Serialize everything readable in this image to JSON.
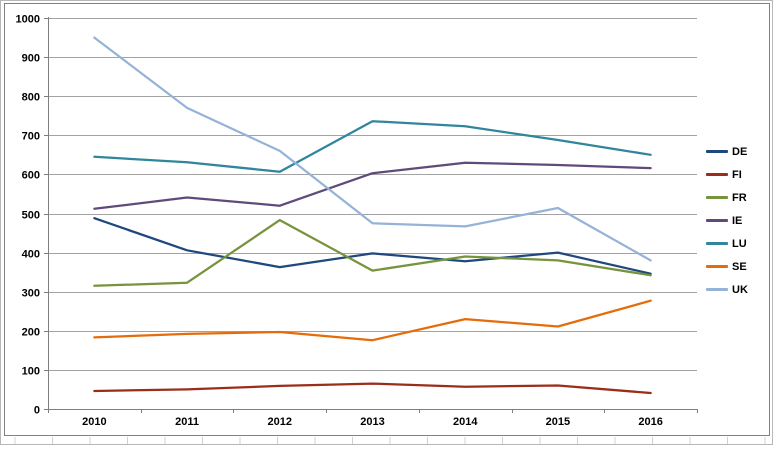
{
  "chart_data": {
    "type": "line",
    "title": "",
    "xlabel": "",
    "ylabel": "",
    "categories": [
      "2010",
      "2011",
      "2012",
      "2013",
      "2014",
      "2015",
      "2016"
    ],
    "series": [
      {
        "name": "DE",
        "color": "#1F497D",
        "values": [
          488,
          406,
          363,
          398,
          378,
          400,
          346
        ]
      },
      {
        "name": "FI",
        "color": "#9B2D1B",
        "values": [
          46,
          50,
          59,
          65,
          57,
          60,
          41
        ]
      },
      {
        "name": "FR",
        "color": "#77933C",
        "values": [
          315,
          323,
          483,
          354,
          390,
          380,
          342
        ]
      },
      {
        "name": "IE",
        "color": "#604A7B",
        "values": [
          512,
          541,
          520,
          603,
          630,
          624,
          616
        ]
      },
      {
        "name": "LU",
        "color": "#31859C",
        "values": [
          645,
          631,
          607,
          736,
          723,
          688,
          650
        ]
      },
      {
        "name": "SE",
        "color": "#E46C0A",
        "values": [
          183,
          192,
          197,
          176,
          230,
          211,
          277
        ]
      },
      {
        "name": "UK",
        "color": "#95B3D7",
        "values": [
          950,
          770,
          660,
          475,
          467,
          514,
          380
        ]
      }
    ],
    "ylim": [
      0,
      1000
    ],
    "yticks": [
      0,
      100,
      200,
      300,
      400,
      500,
      600,
      700,
      800,
      900,
      1000
    ],
    "grid": true,
    "legend_position": "right",
    "grid_color": "#A3A3A3",
    "axis_color": "#7F7F7F",
    "frame_color": "#808080",
    "outer_border_color": "#B7B7B7",
    "cell_line_color": "#D0D0D0",
    "background": "#FFFFFF"
  }
}
